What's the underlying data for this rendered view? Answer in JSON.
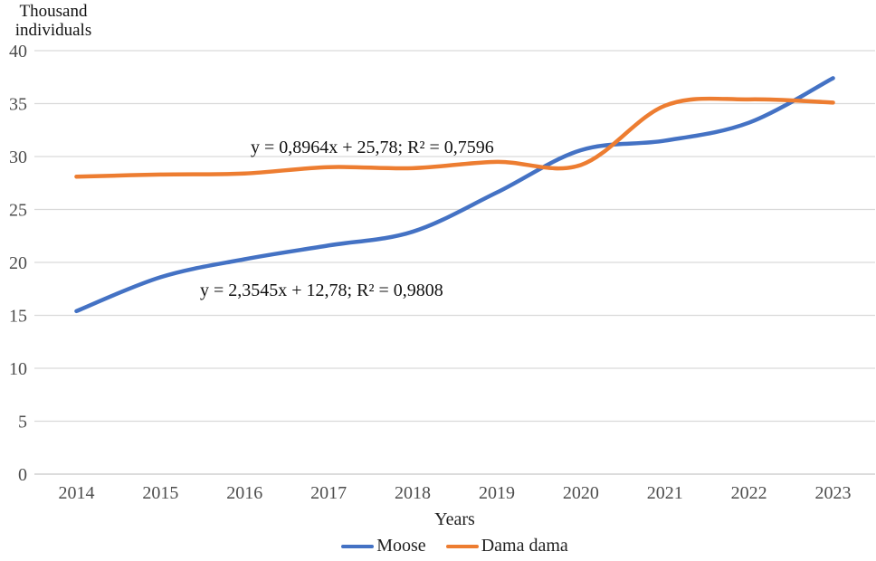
{
  "y_axis_title": {
    "line1": "Thousand",
    "line2": "individuals"
  },
  "x_axis_title": "Years",
  "legend": [
    {
      "label": "Moose",
      "color": "#4472C4"
    },
    {
      "label": "Dama dama",
      "color": "#ED7D31"
    }
  ],
  "chart_data": {
    "type": "line",
    "title": "Thousand individuals",
    "xlabel": "Years",
    "ylabel": "Thousand individuals",
    "categories": [
      "2014",
      "2015",
      "2016",
      "2017",
      "2018",
      "2019",
      "2020",
      "2021",
      "2022",
      "2023"
    ],
    "series": [
      {
        "name": "Moose",
        "color": "#4472C4",
        "values": [
          15.4,
          18.6,
          20.3,
          21.6,
          22.9,
          26.6,
          30.6,
          31.5,
          33.2,
          37.4
        ]
      },
      {
        "name": "Dama dama",
        "color": "#ED7D31",
        "values": [
          28.1,
          28.3,
          28.4,
          29.0,
          28.9,
          29.5,
          29.2,
          34.8,
          35.4,
          35.1
        ]
      }
    ],
    "trendlines": [
      {
        "series": "Moose",
        "label": "y = 2,3545x + 12,78; R² = 0,9808"
      },
      {
        "series": "Dama dama",
        "label": "y = 0,8964x + 25,78; R² = 0,7596"
      }
    ],
    "ylim": [
      0,
      40
    ],
    "yticks": [
      0,
      5,
      10,
      15,
      20,
      25,
      30,
      35,
      40
    ],
    "grid": true,
    "line_style": "smoothed",
    "legend_position": "bottom",
    "colors": {
      "gridline": "#D9D9D9",
      "axis_line": "#C6C6C6",
      "tick_label": "#4d4d4d",
      "annotation_text": "#111111"
    }
  }
}
